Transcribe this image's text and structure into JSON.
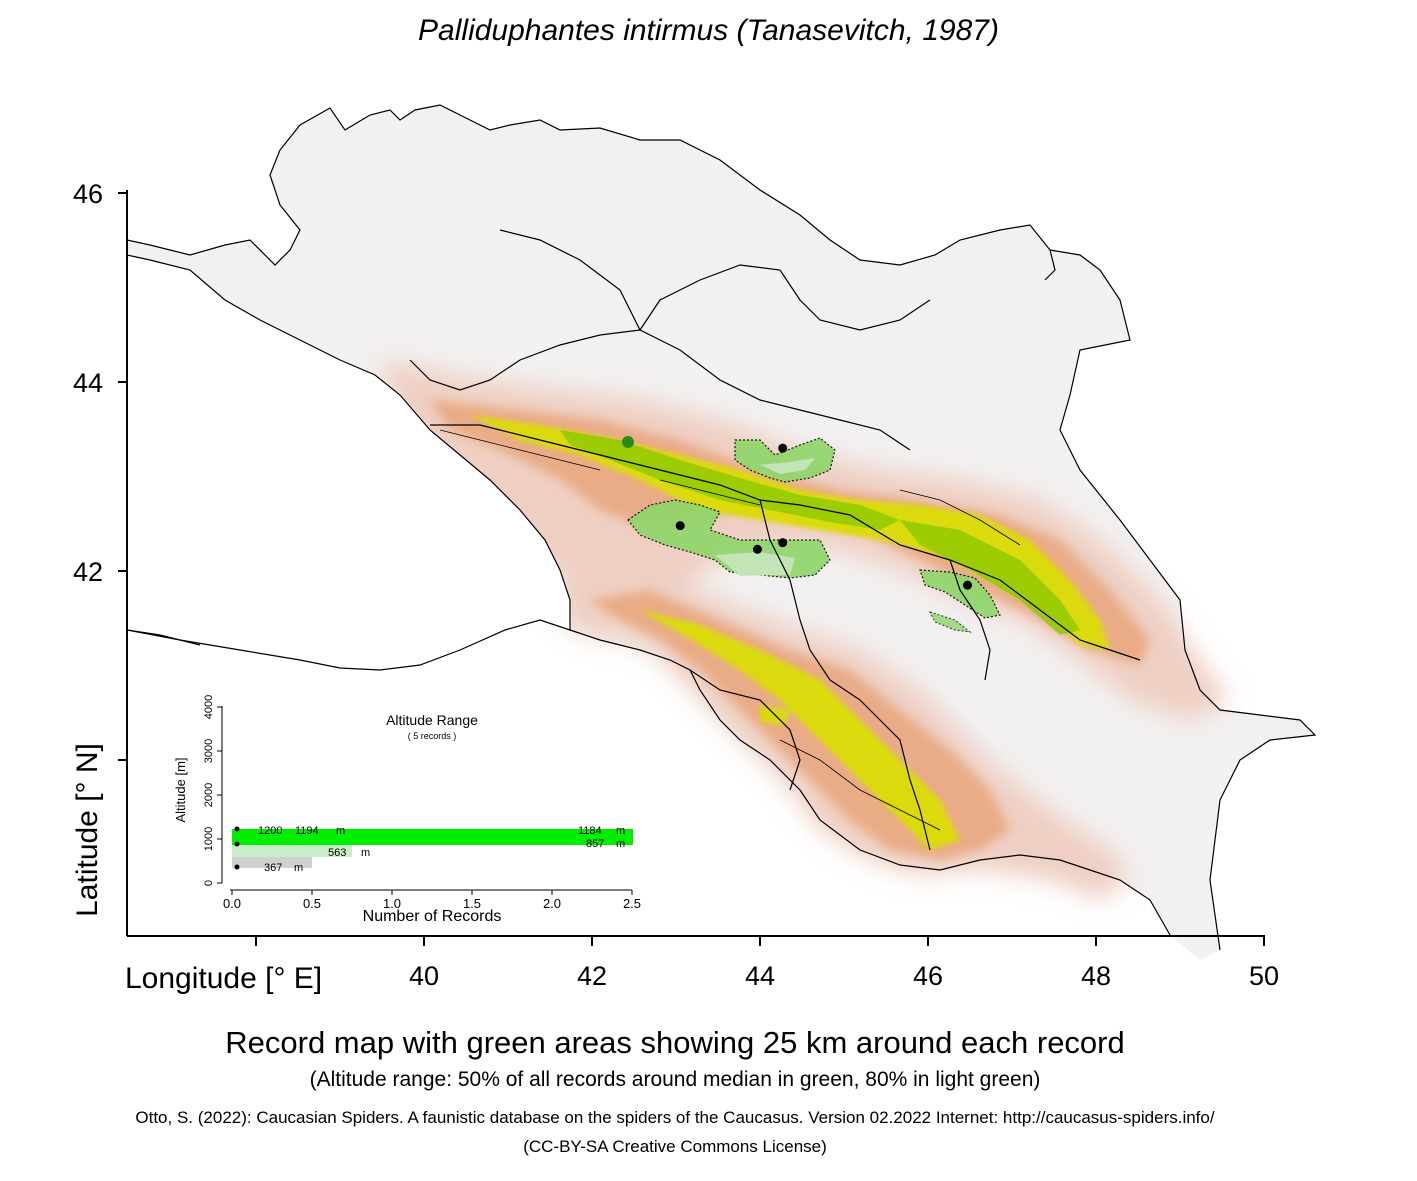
{
  "title": "Palliduphantes intirmus (Tanasevitch, 1987)",
  "caption": {
    "main": "Record map with green areas showing 25 km around each record",
    "sub": "(Altitude range: 50% of all records around median in green, 80% in light green)",
    "credit": "Otto, S. (2022): Caucasian Spiders. A faunistic database on the spiders of the Caucasus. Version 02.2022 Internet: http://caucasus-spiders.info/",
    "license": "(CC-BY-SA Creative Commons License)"
  },
  "axes": {
    "x_title": "Longitude [° E]",
    "y_title": "Latitude [° N]",
    "x_ticks": [
      "40",
      "42",
      "44",
      "46",
      "48",
      "50"
    ],
    "y_ticks": [
      "46",
      "44",
      "42"
    ]
  },
  "records": [
    {
      "lon": 44.27,
      "lat": 43.3
    },
    {
      "lon": 43.05,
      "lat": 42.48
    },
    {
      "lon": 43.97,
      "lat": 42.23
    },
    {
      "lon": 44.27,
      "lat": 42.3
    },
    {
      "lon": 46.47,
      "lat": 41.85
    }
  ],
  "inset": {
    "title": "Altitude Range",
    "subtitle": "( 5 records )",
    "y_title": "Altitude [m]",
    "x_title": "Number of Records",
    "y_ticks": [
      "0",
      "1000",
      "2000",
      "3000",
      "4000"
    ],
    "x_ticks": [
      "0.0",
      "0.5",
      "1.0",
      "1.5",
      "2.0",
      "2.5"
    ],
    "labels": [
      "1200",
      "1194",
      "m",
      "1184",
      "m",
      "563",
      "m",
      "857",
      "m",
      "367",
      "m"
    ],
    "colors": {
      "median_50": "#00ee00",
      "range_80": "#c8f0c8",
      "outer": "#d0d0d0"
    }
  },
  "colors": {
    "lowland": "#f2f0f0",
    "foothill": "#ecb9a4",
    "mid": "#e9a16c",
    "high": "#d8d800",
    "peak": "#7fc000",
    "record_buffer": "#8ed66a"
  }
}
